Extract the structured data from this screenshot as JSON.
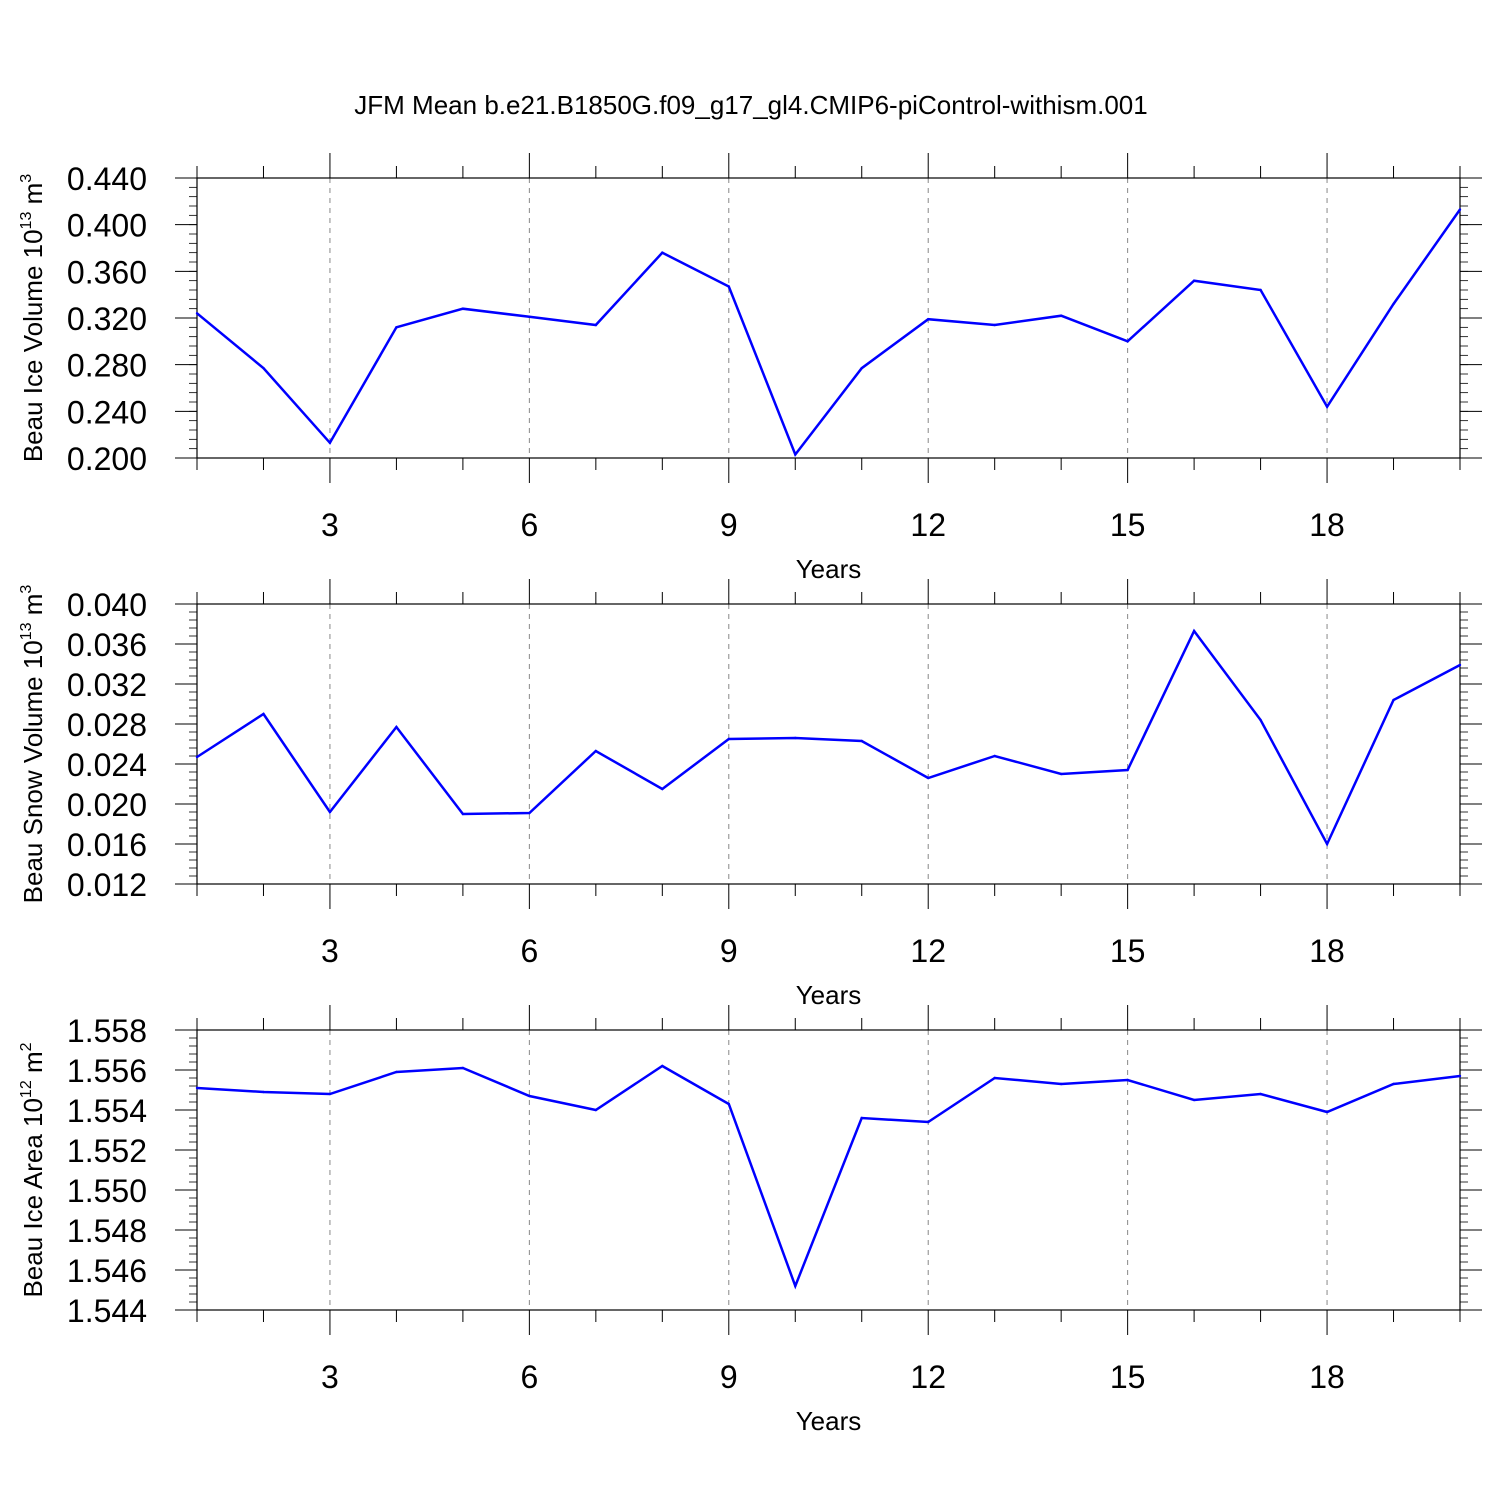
{
  "figure": {
    "title": "JFM Mean b.e21.B1850G.f09_g17_gl4.CMIP6-piControl-withism.001"
  },
  "chart_data": [
    {
      "type": "line",
      "ylabel": {
        "base": "Beau Ice Volume 10",
        "exp": "13",
        "unit": " m",
        "unit_exp": "3"
      },
      "xlabel": "Years",
      "xlim": [
        1,
        20
      ],
      "ylim": [
        0.2,
        0.44
      ],
      "x_ticks": [
        3,
        6,
        9,
        12,
        15,
        18
      ],
      "y_ticks": [
        0.2,
        0.24,
        0.28,
        0.32,
        0.36,
        0.4,
        0.44
      ],
      "y_tick_labels": [
        "0.200",
        "0.240",
        "0.280",
        "0.320",
        "0.360",
        "0.400",
        "0.440"
      ],
      "y_minor_step": 0.008,
      "vertical_gridlines": "dashed at major x ticks",
      "line_color": "#0000ff",
      "x": [
        1,
        2,
        3,
        4,
        5,
        6,
        7,
        8,
        9,
        10,
        11,
        12,
        13,
        14,
        15,
        16,
        17,
        18,
        19,
        20
      ],
      "values": [
        0.324,
        0.277,
        0.213,
        0.312,
        0.328,
        0.321,
        0.314,
        0.376,
        0.347,
        0.203,
        0.277,
        0.319,
        0.314,
        0.322,
        0.3,
        0.352,
        0.344,
        0.244,
        0.332,
        0.413
      ]
    },
    {
      "type": "line",
      "ylabel": {
        "base": "Beau Snow Volume 10",
        "exp": "13",
        "unit": " m",
        "unit_exp": "3"
      },
      "xlabel": "Years",
      "xlim": [
        1,
        20
      ],
      "ylim": [
        0.012,
        0.04
      ],
      "x_ticks": [
        3,
        6,
        9,
        12,
        15,
        18
      ],
      "y_ticks": [
        0.012,
        0.016,
        0.02,
        0.024,
        0.028,
        0.032,
        0.036,
        0.04
      ],
      "y_tick_labels": [
        "0.012",
        "0.016",
        "0.020",
        "0.024",
        "0.028",
        "0.032",
        "0.036",
        "0.040"
      ],
      "y_minor_step": 0.0008,
      "vertical_gridlines": "dashed at major x ticks",
      "line_color": "#0000ff",
      "x": [
        1,
        2,
        3,
        4,
        5,
        6,
        7,
        8,
        9,
        10,
        11,
        12,
        13,
        14,
        15,
        16,
        17,
        18,
        19,
        20
      ],
      "values": [
        0.0247,
        0.029,
        0.0192,
        0.0277,
        0.019,
        0.0191,
        0.0253,
        0.0215,
        0.0265,
        0.0266,
        0.0263,
        0.0226,
        0.0248,
        0.023,
        0.0234,
        0.0373,
        0.0284,
        0.016,
        0.0304,
        0.0339
      ]
    },
    {
      "type": "line",
      "ylabel": {
        "base": "Beau Ice Area 10",
        "exp": "12",
        "unit": " m",
        "unit_exp": "2"
      },
      "xlabel": "Years",
      "xlim": [
        1,
        20
      ],
      "ylim": [
        1.544,
        1.558
      ],
      "x_ticks": [
        3,
        6,
        9,
        12,
        15,
        18
      ],
      "y_ticks": [
        1.544,
        1.546,
        1.548,
        1.55,
        1.552,
        1.554,
        1.556,
        1.558
      ],
      "y_tick_labels": [
        "1.544",
        "1.546",
        "1.548",
        "1.550",
        "1.552",
        "1.554",
        "1.556",
        "1.558"
      ],
      "y_minor_step": 0.0004,
      "vertical_gridlines": "dashed at major x ticks",
      "line_color": "#0000ff",
      "x": [
        1,
        2,
        3,
        4,
        5,
        6,
        7,
        8,
        9,
        10,
        11,
        12,
        13,
        14,
        15,
        16,
        17,
        18,
        19,
        20
      ],
      "values": [
        1.5551,
        1.5549,
        1.5548,
        1.5559,
        1.5561,
        1.5547,
        1.554,
        1.5562,
        1.5543,
        1.5452,
        1.5536,
        1.5534,
        1.5556,
        1.5553,
        1.5555,
        1.5545,
        1.5548,
        1.5539,
        1.5553,
        1.5557
      ]
    }
  ]
}
